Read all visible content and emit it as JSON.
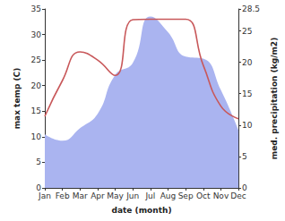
{
  "chart_data": {
    "type": "line",
    "xlabel": "date (month)",
    "ylabel": "max temp (C)",
    "y2label": "med. precipitation (kg/m2)",
    "categories": [
      "Jan",
      "Feb",
      "Mar",
      "Apr",
      "May",
      "Jun",
      "Jul",
      "Aug",
      "Sep",
      "Oct",
      "Nov",
      "Dec"
    ],
    "series": [
      {
        "type": "area",
        "axis": "y2",
        "color": "#aab4f0",
        "values": [
          8.5,
          7.5,
          9.5,
          11.8,
          18,
          19.9,
          27.3,
          24.8,
          20.9,
          20.6,
          15.6,
          9.2
        ]
      },
      {
        "type": "line",
        "axis": "y",
        "color": "#c8585a",
        "values": [
          14,
          21,
          26.6,
          25,
          22,
          32.9,
          33,
          33,
          33,
          24,
          16,
          13.5
        ]
      }
    ],
    "ylim": [
      0,
      35
    ],
    "yticks": [
      0,
      5,
      10,
      15,
      20,
      25,
      30,
      35
    ],
    "y2lim": [
      0,
      28.5
    ],
    "y2ticks": [
      0,
      5,
      10,
      15,
      20,
      25
    ],
    "grid": false
  }
}
